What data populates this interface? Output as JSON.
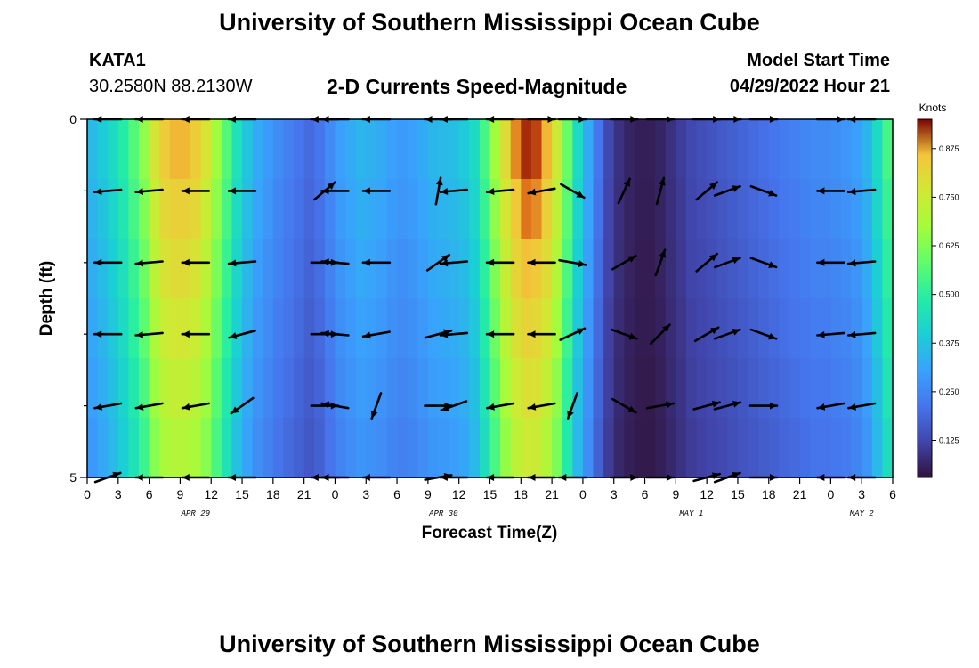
{
  "header": {
    "title": "University of Southern Mississippi Ocean Cube",
    "station": "KATA1",
    "coords": "30.2580N  88.2130W",
    "plot_title": "2-D Currents Speed-Magnitude",
    "model_start_label": "Model Start Time",
    "model_start_value": "04/29/2022 Hour 21"
  },
  "footer": {
    "title": "University of Southern Mississippi Ocean Cube"
  },
  "chart_data": {
    "type": "heatmap",
    "title": "2-D Currents Speed-Magnitude",
    "xlabel": "Forecast Time(Z)",
    "ylabel": "Depth (ft)",
    "x_ticks": [
      "0",
      "3",
      "6",
      "9",
      "12",
      "15",
      "18",
      "21",
      "0",
      "3",
      "6",
      "9",
      "12",
      "15",
      "18",
      "21",
      "0",
      "3",
      "6",
      "9",
      "12",
      "15",
      "18",
      "21",
      "0",
      "3",
      "6"
    ],
    "date_labels": [
      {
        "label": "APR 29",
        "hour": 10.5
      },
      {
        "label": "APR 30",
        "hour": 34.5
      },
      {
        "label": "MAY 1",
        "hour": 58.5
      },
      {
        "label": "MAY 2",
        "hour": 75
      }
    ],
    "x_range_hours": [
      0,
      78
    ],
    "y_ticks": [
      "0",
      "5"
    ],
    "y_range_ft": [
      0,
      5
    ],
    "colorbar": {
      "label": "Knots",
      "range": [
        0.03,
        0.95
      ],
      "ticks": [
        "0.125",
        "0.250",
        "0.375",
        "0.500",
        "0.625",
        "0.750",
        "0.875"
      ],
      "tick_values": [
        0.125,
        0.25,
        0.375,
        0.5,
        0.625,
        0.75,
        0.875
      ]
    },
    "grid": false,
    "speed_profile_hourly_knots": [
      0.33,
      0.36,
      0.4,
      0.45,
      0.52,
      0.6,
      0.72,
      0.78,
      0.8,
      0.8,
      0.78,
      0.72,
      0.62,
      0.52,
      0.42,
      0.35,
      0.3,
      0.27,
      0.24,
      0.22,
      0.2,
      0.18,
      0.2,
      0.24,
      0.28,
      0.3,
      0.32,
      0.31,
      0.3,
      0.28,
      0.27,
      0.28,
      0.3,
      0.32,
      0.33,
      0.34,
      0.36,
      0.4,
      0.5,
      0.62,
      0.74,
      0.82,
      0.86,
      0.85,
      0.8,
      0.7,
      0.55,
      0.4,
      0.3,
      0.2,
      0.12,
      0.08,
      0.06,
      0.05,
      0.05,
      0.06,
      0.08,
      0.1,
      0.12,
      0.13,
      0.14,
      0.15,
      0.16,
      0.17,
      0.18,
      0.19,
      0.2,
      0.21,
      0.22,
      0.23,
      0.24,
      0.24,
      0.25,
      0.26,
      0.28,
      0.32,
      0.4,
      0.5,
      0.6
    ],
    "depth_factor": [
      1.08,
      1.04,
      1.0,
      0.96,
      0.92,
      0.88
    ],
    "arrow_depths_ft": [
      0,
      1,
      2,
      3,
      4,
      5
    ],
    "arrows": [
      {
        "hour": 2,
        "dirs": [
          180,
          185,
          180,
          180,
          190,
          20
        ]
      },
      {
        "hour": 6,
        "dirs": [
          180,
          185,
          185,
          185,
          190,
          180
        ]
      },
      {
        "hour": 10.5,
        "dirs": [
          180,
          180,
          180,
          180,
          190,
          180
        ]
      },
      {
        "hour": 15,
        "dirs": [
          180,
          180,
          185,
          195,
          215,
          180
        ]
      },
      {
        "hour": 23,
        "dirs": [
          180,
          40,
          0,
          0,
          0,
          180
        ]
      },
      {
        "hour": 24,
        "dirs": [
          180,
          180,
          175,
          175,
          170,
          180
        ]
      },
      {
        "hour": 28,
        "dirs": [
          180,
          180,
          180,
          190,
          250,
          180
        ]
      },
      {
        "hour": 34,
        "dirs": [
          180,
          80,
          35,
          15,
          0,
          10
        ]
      },
      {
        "hour": 35.5,
        "dirs": [
          180,
          185,
          185,
          185,
          200,
          180
        ]
      },
      {
        "hour": 40,
        "dirs": [
          180,
          185,
          180,
          180,
          190,
          180
        ]
      },
      {
        "hour": 44,
        "dirs": [
          0,
          190,
          180,
          180,
          190,
          180
        ]
      },
      {
        "hour": 47,
        "dirs": [
          0,
          330,
          350,
          25,
          250,
          180
        ]
      },
      {
        "hour": 52,
        "dirs": [
          0,
          65,
          30,
          340,
          330,
          0
        ]
      },
      {
        "hour": 55.5,
        "dirs": [
          0,
          75,
          70,
          45,
          10,
          0
        ]
      },
      {
        "hour": 60,
        "dirs": [
          0,
          40,
          40,
          30,
          15,
          15
        ]
      },
      {
        "hour": 62,
        "dirs": [
          0,
          20,
          20,
          20,
          15,
          20
        ]
      },
      {
        "hour": 65.5,
        "dirs": [
          0,
          340,
          340,
          340,
          0,
          0
        ]
      },
      {
        "hour": 72,
        "dirs": [
          0,
          180,
          180,
          185,
          190,
          180
        ]
      },
      {
        "hour": 75,
        "dirs": [
          180,
          185,
          185,
          185,
          190,
          180
        ]
      }
    ]
  }
}
